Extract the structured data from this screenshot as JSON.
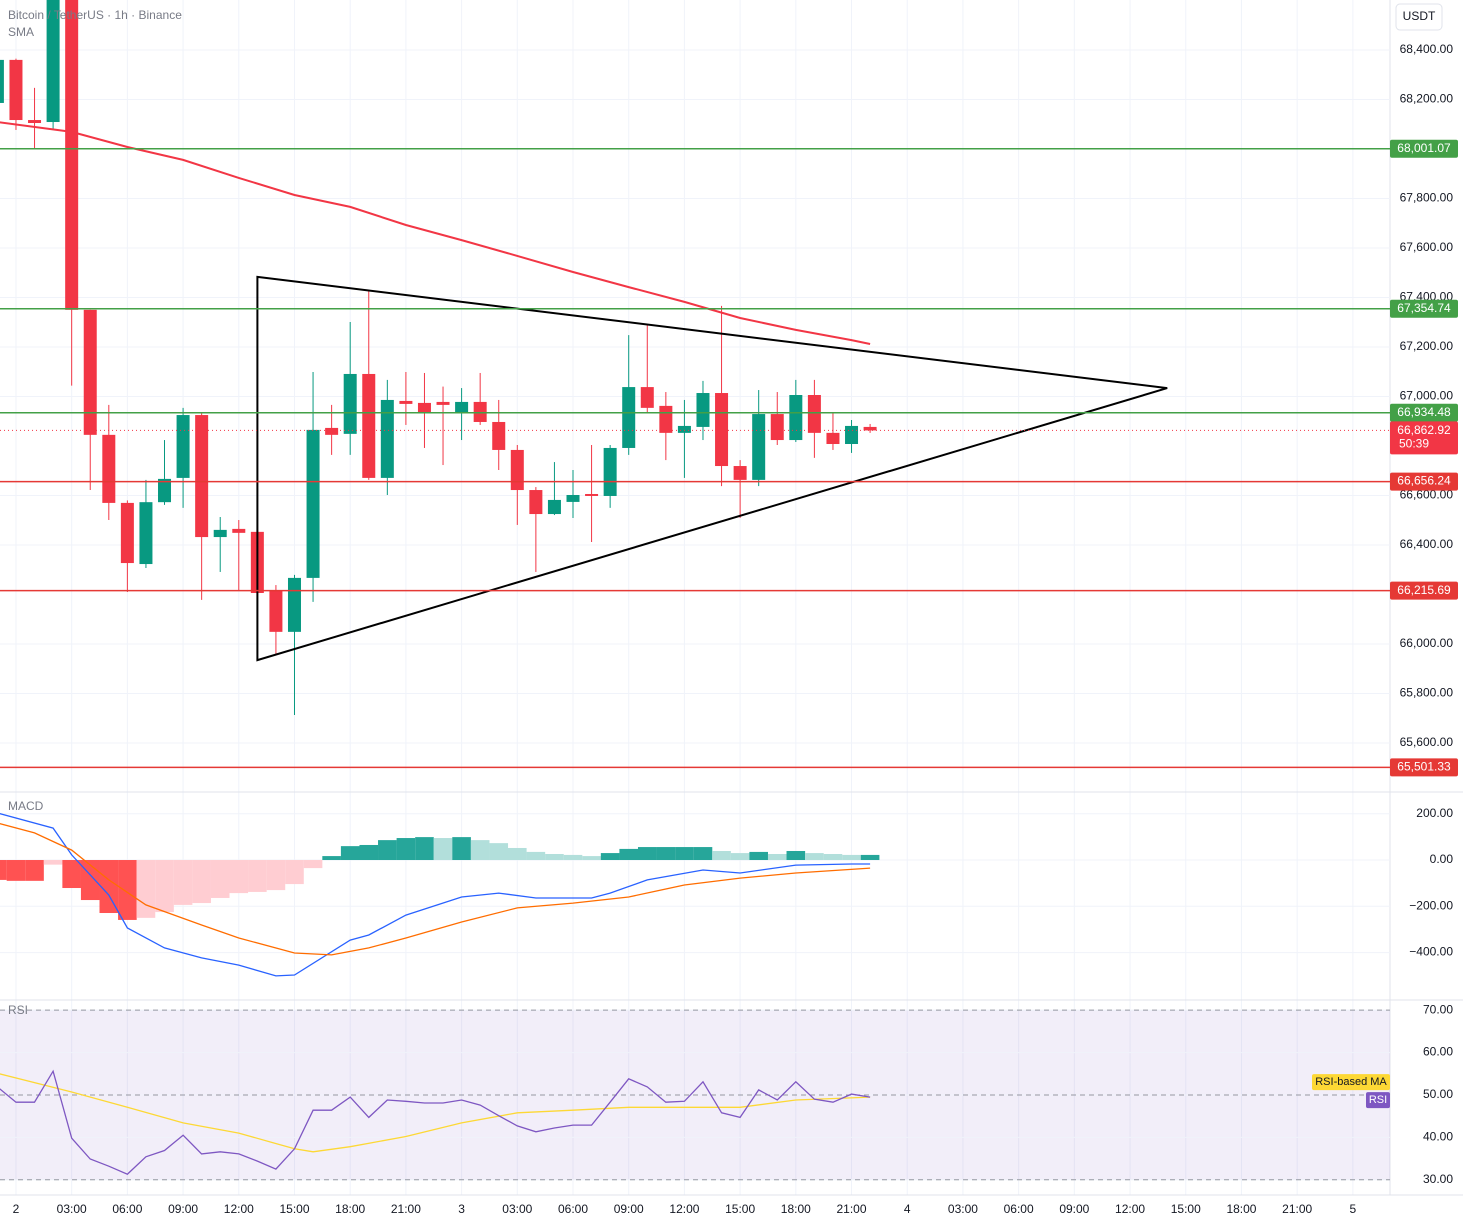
{
  "chart_data": [
    {
      "type": "candlestick",
      "title": "Bitcoin / TetherUS · 1h · Binance",
      "unit": "USDT",
      "grid": true,
      "xlim": [
        -0.86,
        74.0
      ],
      "xticks": [
        {
          "value": 0,
          "label": "2"
        },
        {
          "value": 3,
          "label": "03:00"
        },
        {
          "value": 6,
          "label": "06:00"
        },
        {
          "value": 9,
          "label": "09:00"
        },
        {
          "value": 12,
          "label": "12:00"
        },
        {
          "value": 15,
          "label": "15:00"
        },
        {
          "value": 18,
          "label": "18:00"
        },
        {
          "value": 21,
          "label": "21:00"
        },
        {
          "value": 24,
          "label": "3"
        },
        {
          "value": 27,
          "label": "03:00"
        },
        {
          "value": 30,
          "label": "06:00"
        },
        {
          "value": 33,
          "label": "09:00"
        },
        {
          "value": 36,
          "label": "12:00"
        },
        {
          "value": 39,
          "label": "15:00"
        },
        {
          "value": 42,
          "label": "18:00"
        },
        {
          "value": 45,
          "label": "21:00"
        },
        {
          "value": 48,
          "label": "4"
        },
        {
          "value": 51,
          "label": "03:00"
        },
        {
          "value": 54,
          "label": "06:00"
        },
        {
          "value": 57,
          "label": "09:00"
        },
        {
          "value": 60,
          "label": "12:00"
        },
        {
          "value": 63,
          "label": "15:00"
        },
        {
          "value": 66,
          "label": "18:00"
        },
        {
          "value": 69,
          "label": "21:00"
        },
        {
          "value": 72,
          "label": "5"
        }
      ],
      "ylim": [
        65410,
        68602
      ],
      "yticks": [
        {
          "value": 68400,
          "label": "68,400.00"
        },
        {
          "value": 68200,
          "label": "68,200.00"
        },
        {
          "value": 67800,
          "label": "67,800.00"
        },
        {
          "value": 67600,
          "label": "67,600.00"
        },
        {
          "value": 67400,
          "label": "67,400.00"
        },
        {
          "value": 67200,
          "label": "67,200.00"
        },
        {
          "value": 67000,
          "label": "67,000.00"
        },
        {
          "value": 66600,
          "label": "66,600.00"
        },
        {
          "value": 66400,
          "label": "66,400.00"
        },
        {
          "value": 66000,
          "label": "66,000.00"
        },
        {
          "value": 65800,
          "label": "65,800.00"
        },
        {
          "value": 65600,
          "label": "65,600.00"
        }
      ],
      "colors": {
        "up": "#089981",
        "down": "#f23645"
      },
      "x": [
        -1,
        0,
        1,
        2,
        3,
        4,
        5,
        6,
        7,
        8,
        9,
        10,
        11,
        12,
        13,
        14,
        15,
        16,
        17,
        18,
        19,
        20,
        21,
        22,
        23,
        24,
        25,
        26,
        27,
        28,
        29,
        30,
        31,
        32,
        33,
        34,
        35,
        36,
        37,
        38,
        39,
        40,
        41,
        42,
        43,
        44,
        45,
        46
      ],
      "open": [
        68186,
        68360,
        68117,
        68109,
        68640,
        67350,
        66845,
        66570,
        66323,
        66573,
        66671,
        66925,
        66432,
        66465,
        66453,
        66218,
        66049,
        66267,
        66873,
        66849,
        67091,
        66671,
        66982,
        66974,
        66978,
        66933,
        66978,
        66897,
        66784,
        66622,
        66525,
        66574,
        66606,
        66598,
        66792,
        67038,
        66962,
        66853,
        66877,
        67014,
        66719,
        66663,
        66929,
        66824,
        67006,
        66853,
        66808,
        66877
      ],
      "high": [
        68368,
        68365,
        68247,
        68650,
        68650,
        67350,
        66966,
        66580,
        66663,
        66824,
        66954,
        66933,
        66513,
        66501,
        66521,
        66238,
        66279,
        67099,
        66966,
        67301,
        67430,
        67067,
        67099,
        67095,
        67040,
        67034,
        67095,
        66986,
        66804,
        66634,
        66735,
        66703,
        66804,
        66804,
        67248,
        67289,
        67018,
        66986,
        67063,
        67366,
        66743,
        67026,
        67018,
        67067,
        67067,
        66937,
        66905,
        66889
      ],
      "low": [
        68180,
        68077,
        68004,
        68080,
        67044,
        66622,
        66501,
        66210,
        66307,
        66562,
        66550,
        66178,
        66291,
        66218,
        66178,
        65956,
        65713,
        66170,
        66764,
        66764,
        66663,
        66602,
        66885,
        66792,
        66723,
        66824,
        66885,
        66703,
        66481,
        66291,
        66521,
        66509,
        66412,
        66550,
        66764,
        66937,
        66743,
        66671,
        66824,
        66638,
        66509,
        66638,
        66804,
        66816,
        66752,
        66784,
        66772,
        66853
      ],
      "close": [
        68360,
        68117,
        68105,
        68640,
        67350,
        66845,
        66570,
        66327,
        66573,
        66667,
        66925,
        66432,
        66461,
        66449,
        66206,
        66049,
        66267,
        66865,
        66845,
        67091,
        66671,
        66986,
        66970,
        66933,
        66966,
        66978,
        66897,
        66784,
        66622,
        66525,
        66582,
        66602,
        66598,
        66792,
        67038,
        66954,
        66853,
        66881,
        67014,
        66719,
        66663,
        66929,
        66824,
        67006,
        66853,
        66808,
        66881,
        66862.92
      ],
      "sma": {
        "label": "SMA",
        "color": "#f23645",
        "x": [
          -1,
          3,
          6,
          9,
          12,
          15,
          18,
          21,
          24,
          27,
          30,
          33,
          36,
          39,
          42,
          45,
          46
        ],
        "values": [
          68109,
          68069,
          68008,
          67956,
          67883,
          67814,
          67766,
          67693,
          67632,
          67568,
          67503,
          67442,
          67382,
          67317,
          67269,
          67228,
          67212
        ]
      },
      "levels": [
        {
          "value": 68001.07,
          "label": "68,001.07",
          "color": "#43a047"
        },
        {
          "value": 67354.74,
          "label": "67,354.74",
          "color": "#43a047"
        },
        {
          "value": 66934.48,
          "label": "66,934.48",
          "color": "#43a047"
        },
        {
          "value": 66656.24,
          "label": "66,656.24",
          "color": "#e53935"
        },
        {
          "value": 66215.69,
          "label": "66,215.69",
          "color": "#e53935"
        },
        {
          "value": 65501.33,
          "label": "65,501.33",
          "color": "#e53935"
        }
      ],
      "last_price": {
        "value": 66862.92,
        "label": "66,862.92",
        "countdown": "50:39",
        "color": "#f23645"
      },
      "triangle": {
        "color": "#000000",
        "x": [
          13,
          13,
          62
        ],
        "values": [
          67483,
          65935,
          67034
        ]
      }
    },
    {
      "type": "macd",
      "title": "MACD",
      "ylim": [
        -605,
        281
      ],
      "yticks": [
        {
          "value": 200,
          "label": "200.00"
        },
        {
          "value": 0,
          "label": "0.00"
        },
        {
          "value": -200,
          "label": "−200.00"
        },
        {
          "value": -400,
          "label": "−400.00"
        }
      ],
      "histogram": {
        "colors": {
          "pos_up": "#26a69a",
          "pos_down": "#b2dfdb",
          "neg_down": "#ff5252",
          "neg_up": "#ffcdd2"
        },
        "x": [
          -1,
          0,
          1,
          2,
          3,
          4,
          5,
          6,
          7,
          8,
          9,
          10,
          11,
          12,
          13,
          14,
          15,
          16,
          17,
          18,
          19,
          20,
          21,
          22,
          23,
          24,
          25,
          26,
          27,
          28,
          29,
          30,
          31,
          32,
          33,
          34,
          35,
          36,
          37,
          38,
          39,
          40,
          41,
          42,
          43,
          44,
          45,
          46
        ],
        "values": [
          -86,
          -90,
          -90,
          -20,
          -121,
          -173,
          -229,
          -259,
          -250,
          -225,
          -194,
          -186,
          -164,
          -143,
          -138,
          -130,
          -104,
          -35,
          17,
          60,
          65,
          86,
          95,
          99,
          95,
          99,
          86,
          73,
          52,
          35,
          26,
          22,
          17,
          30,
          48,
          56,
          56,
          56,
          56,
          39,
          30,
          35,
          26,
          39,
          30,
          26,
          22,
          22
        ]
      },
      "series": [
        {
          "color": "#2962ff",
          "x": [
            -1,
            2,
            3,
            5,
            6,
            8,
            10,
            12,
            14,
            15,
            18,
            19,
            21,
            24,
            26,
            28,
            31,
            32,
            34,
            37,
            39,
            42,
            45,
            46
          ],
          "values": [
            203,
            138,
            22,
            -151,
            -294,
            -380,
            -423,
            -454,
            -501,
            -497,
            -346,
            -324,
            -238,
            -160,
            -143,
            -164,
            -164,
            -143,
            -86,
            -43,
            -56,
            -22,
            -17,
            -17
          ]
        },
        {
          "color": "#ff6d00",
          "x": [
            -1,
            1,
            3,
            5,
            7,
            10,
            12,
            15,
            17,
            19,
            21,
            24,
            27,
            30,
            33,
            36,
            39,
            42,
            46
          ],
          "values": [
            160,
            117,
            43,
            -86,
            -194,
            -281,
            -337,
            -402,
            -410,
            -380,
            -337,
            -268,
            -207,
            -186,
            -160,
            -108,
            -78,
            -56,
            -35
          ]
        }
      ]
    },
    {
      "type": "rsi",
      "title": "RSI",
      "ylim": [
        26.4,
        72.4
      ],
      "yticks": [
        {
          "value": 70,
          "label": "70.00"
        },
        {
          "value": 60,
          "label": "60.00"
        },
        {
          "value": 50,
          "label": "50.00"
        },
        {
          "value": 40,
          "label": "40.00"
        },
        {
          "value": 30,
          "label": "30.00"
        }
      ],
      "band": {
        "from": 30,
        "to": 70,
        "color": "rgba(126,87,194,0.1)"
      },
      "dashed_levels": [
        70,
        50,
        30
      ],
      "series": [
        {
          "name": "RSI",
          "color": "#7e57c2",
          "x": [
            -1,
            0,
            1,
            2,
            3,
            4,
            5,
            6,
            7,
            8,
            9,
            10,
            11,
            12,
            13,
            14,
            15,
            16,
            17,
            18,
            19,
            20,
            21,
            22,
            23,
            24,
            25,
            26,
            27,
            28,
            29,
            30,
            31,
            32,
            33,
            34,
            35,
            36,
            37,
            38,
            39,
            40,
            41,
            42,
            43,
            44,
            45,
            46
          ],
          "values": [
            51.9,
            48.3,
            48.3,
            55.6,
            39.8,
            34.9,
            33.2,
            31.3,
            35.4,
            36.9,
            40.5,
            36.1,
            36.6,
            36.1,
            34.4,
            32.5,
            37.3,
            46.4,
            46.4,
            49.5,
            44.7,
            48.8,
            48.5,
            48.1,
            48.1,
            48.8,
            47.6,
            45.1,
            42.7,
            41.3,
            42.2,
            42.9,
            42.9,
            48.3,
            53.8,
            51.9,
            48.3,
            48.5,
            53.1,
            45.8,
            44.7,
            51.2,
            48.8,
            53.1,
            49.0,
            48.3,
            50.2,
            49.5
          ]
        },
        {
          "name": "RSI-based MA",
          "color": "#fdd835",
          "x": [
            -1,
            3,
            6,
            9,
            12,
            15,
            16,
            18,
            21,
            24,
            27,
            30,
            33,
            36,
            39,
            42,
            46
          ],
          "values": [
            55.1,
            50.7,
            47.1,
            43.4,
            41.0,
            37.3,
            36.6,
            37.8,
            40.2,
            43.4,
            45.8,
            46.4,
            47.1,
            47.1,
            47.1,
            48.8,
            49.5
          ]
        }
      ]
    }
  ]
}
